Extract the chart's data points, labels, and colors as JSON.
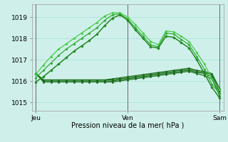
{
  "bg_color": "#cff0ea",
  "grid_color": "#a8ddd8",
  "xlabel": "Pression niveau de la mer( hPa )",
  "xtick_labels": [
    "Jeu",
    "Ven",
    "Sam"
  ],
  "xtick_positions": [
    0,
    12,
    24
  ],
  "ytick_values": [
    1015,
    1016,
    1017,
    1018,
    1019
  ],
  "ylim": [
    1014.6,
    1019.6
  ],
  "xlim": [
    -0.5,
    24.5
  ],
  "series": [
    {
      "y": [
        1016.3,
        1016.75,
        1017.15,
        1017.5,
        1017.75,
        1018.0,
        1018.25,
        1018.5,
        1018.75,
        1019.05,
        1019.2,
        1019.2,
        1019.0,
        1018.65,
        1018.25,
        1017.85,
        1017.7,
        1018.35,
        1018.3,
        1018.1,
        1017.85,
        1017.35,
        1016.8,
        1016.1,
        1015.6
      ],
      "color": "#44cc44",
      "lw": 0.9,
      "marker": "D",
      "ms": 2.0,
      "zorder": 4
    },
    {
      "y": [
        1016.15,
        1016.5,
        1016.85,
        1017.2,
        1017.5,
        1017.75,
        1018.0,
        1018.25,
        1018.5,
        1018.85,
        1019.1,
        1019.15,
        1018.9,
        1018.5,
        1018.1,
        1017.7,
        1017.6,
        1018.25,
        1018.2,
        1017.95,
        1017.7,
        1017.15,
        1016.55,
        1015.85,
        1015.4
      ],
      "color": "#33aa33",
      "lw": 0.9,
      "marker": "D",
      "ms": 2.0,
      "zorder": 4
    },
    {
      "y": [
        1015.95,
        1016.2,
        1016.5,
        1016.8,
        1017.1,
        1017.4,
        1017.65,
        1017.9,
        1018.2,
        1018.6,
        1018.95,
        1019.1,
        1018.85,
        1018.4,
        1018.0,
        1017.6,
        1017.55,
        1018.1,
        1018.05,
        1017.8,
        1017.55,
        1017.0,
        1016.35,
        1015.7,
        1015.2
      ],
      "color": "#228822",
      "lw": 1.1,
      "marker": "D",
      "ms": 2.2,
      "zorder": 5
    },
    {
      "y": [
        1016.35,
        1016.05,
        1016.05,
        1016.05,
        1016.05,
        1016.05,
        1016.05,
        1016.05,
        1016.05,
        1016.05,
        1016.1,
        1016.15,
        1016.2,
        1016.25,
        1016.3,
        1016.35,
        1016.4,
        1016.45,
        1016.5,
        1016.55,
        1016.6,
        1016.5,
        1016.45,
        1016.35,
        1015.65
      ],
      "color": "#1a6e1a",
      "lw": 0.85,
      "marker": "D",
      "ms": 1.8,
      "zorder": 3
    },
    {
      "y": [
        1016.35,
        1016.05,
        1016.05,
        1016.05,
        1016.05,
        1016.05,
        1016.05,
        1016.05,
        1016.05,
        1016.05,
        1016.05,
        1016.1,
        1016.15,
        1016.2,
        1016.25,
        1016.3,
        1016.35,
        1016.4,
        1016.45,
        1016.5,
        1016.55,
        1016.45,
        1016.4,
        1016.3,
        1015.55
      ],
      "color": "#1a6e1a",
      "lw": 0.85,
      "marker": "D",
      "ms": 1.8,
      "zorder": 3
    },
    {
      "y": [
        1016.35,
        1016.0,
        1016.0,
        1016.0,
        1016.0,
        1016.0,
        1016.0,
        1016.0,
        1016.0,
        1016.0,
        1016.0,
        1016.05,
        1016.1,
        1016.15,
        1016.2,
        1016.25,
        1016.3,
        1016.35,
        1016.4,
        1016.45,
        1016.5,
        1016.4,
        1016.35,
        1016.2,
        1015.45
      ],
      "color": "#1a6e1a",
      "lw": 0.85,
      "marker": "D",
      "ms": 1.8,
      "zorder": 3
    },
    {
      "y": [
        1016.35,
        1015.95,
        1015.95,
        1015.95,
        1015.95,
        1015.95,
        1015.95,
        1015.95,
        1015.95,
        1015.95,
        1015.95,
        1016.0,
        1016.05,
        1016.1,
        1016.15,
        1016.2,
        1016.25,
        1016.3,
        1016.35,
        1016.4,
        1016.45,
        1016.35,
        1016.25,
        1016.1,
        1015.3
      ],
      "color": "#1a6e1a",
      "lw": 0.85,
      "marker": "D",
      "ms": 1.8,
      "zorder": 3
    }
  ],
  "vline_x": [
    0,
    12,
    24
  ],
  "vline_color": "#666666",
  "vline_lw": 0.7
}
